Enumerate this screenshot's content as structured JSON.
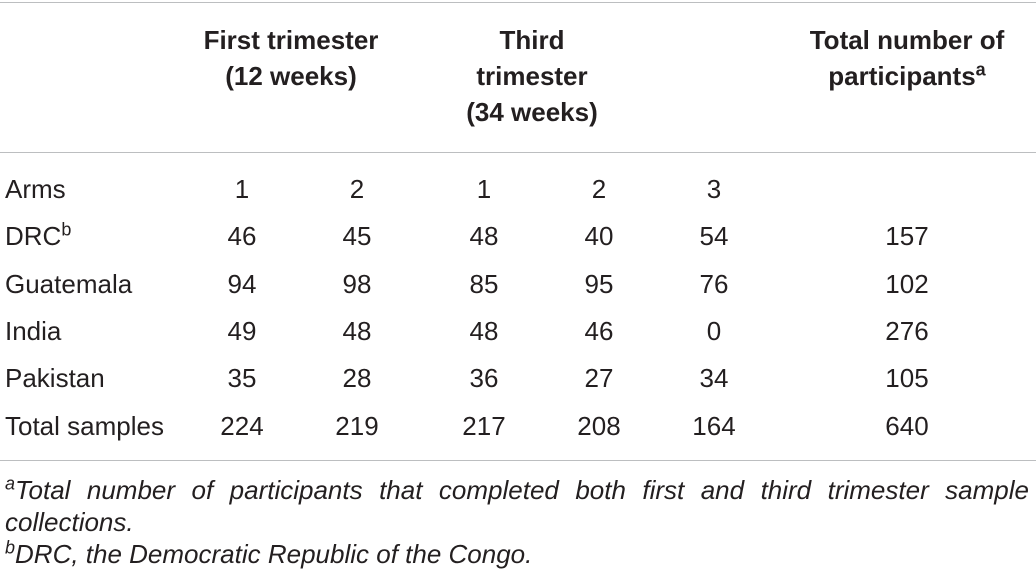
{
  "header": {
    "first_trimester": [
      "First trimester",
      "(12 weeks)"
    ],
    "third_trimester": [
      "Third",
      "trimester",
      "(34 weeks)"
    ],
    "total_participants": [
      "Total number of",
      "participants"
    ],
    "total_participants_sup": "a"
  },
  "rows": [
    {
      "label": "Arms",
      "label_sup": "",
      "values": [
        "1",
        "2",
        "1",
        "2",
        "3",
        ""
      ]
    },
    {
      "label": "DRC",
      "label_sup": "b",
      "values": [
        "46",
        "45",
        "48",
        "40",
        "54",
        "157"
      ]
    },
    {
      "label": "Guatemala",
      "label_sup": "",
      "values": [
        "94",
        "98",
        "85",
        "95",
        "76",
        "102"
      ]
    },
    {
      "label": "India",
      "label_sup": "",
      "values": [
        "49",
        "48",
        "48",
        "46",
        "0",
        "276"
      ]
    },
    {
      "label": "Pakistan",
      "label_sup": "",
      "values": [
        "35",
        "28",
        "36",
        "27",
        "34",
        "105"
      ]
    },
    {
      "label": "Total samples",
      "label_sup": "",
      "values": [
        "224",
        "219",
        "217",
        "208",
        "164",
        "640"
      ]
    }
  ],
  "footnotes": [
    {
      "mark": "a",
      "text": "Total number of participants that completed both first and third trimester sample collections."
    },
    {
      "mark": "b",
      "text": "DRC, the Democratic Republic of the Congo."
    }
  ]
}
